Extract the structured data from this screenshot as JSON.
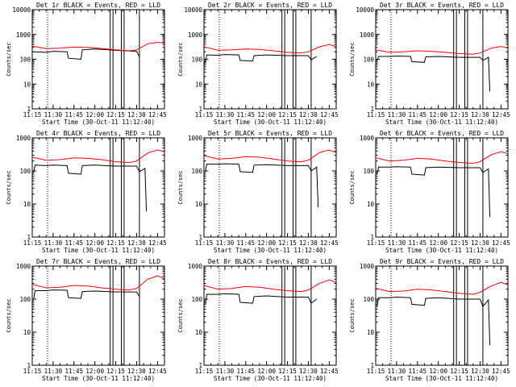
{
  "chart_data": [
    {
      "type": "line",
      "title": "Det 1r BLACK = Events, RED = LLD",
      "xlabel": "Start Time (30-Oct-11 11:12:40)",
      "ylabel": "Counts/sec",
      "y_scale": "log",
      "ylim": [
        1,
        10000
      ],
      "xlim": [
        "11:15",
        "12:50"
      ],
      "x_ticks": [
        "11:15",
        "11:30",
        "11:45",
        "12:00",
        "12:15",
        "12:30",
        "12:45"
      ],
      "y_ticks": [
        "1",
        "10",
        "100",
        "1000",
        "10000"
      ],
      "series": [
        {
          "color": "#000000",
          "x": [
            "11:16",
            "11:25",
            "11:30",
            "11:40",
            "11:41",
            "11:50",
            "11:51",
            "12:00",
            "12:15",
            "12:30",
            "12:32"
          ],
          "y": [
            200,
            190,
            210,
            200,
            110,
            100,
            240,
            260,
            230,
            210,
            125
          ]
        },
        {
          "color": "#ff0000",
          "x": [
            "11:15",
            "11:25",
            "11:35",
            "11:45",
            "11:55",
            "12:05",
            "12:15",
            "12:25",
            "12:30",
            "12:38",
            "12:45",
            "12:50"
          ],
          "y": [
            340,
            270,
            280,
            310,
            300,
            270,
            240,
            220,
            240,
            420,
            480,
            460
          ]
        }
      ],
      "markers": [
        "11:26",
        "12:11",
        "12:13",
        "12:19",
        "12:21",
        "12:32"
      ]
    },
    {
      "type": "line",
      "title": "Det 2r BLACK = Events, RED = LLD",
      "xlabel": "Start Time (30-Oct-11 11:12:40)",
      "ylabel": "Counts/sec",
      "y_scale": "log",
      "ylim": [
        1,
        10000
      ],
      "xlim": [
        "11:15",
        "12:50"
      ],
      "x_ticks": [
        "11:15",
        "11:30",
        "11:45",
        "12:00",
        "12:15",
        "12:30",
        "12:45"
      ],
      "y_ticks": [
        "1",
        "10",
        "100",
        "1000",
        "10000"
      ],
      "series": [
        {
          "color": "#000000",
          "x": [
            "11:16",
            "11:17",
            "11:25",
            "11:30",
            "11:40",
            "11:41",
            "11:50",
            "11:51",
            "12:00",
            "12:15",
            "12:30",
            "12:32",
            "12:36"
          ],
          "y": [
            70,
            150,
            145,
            155,
            150,
            90,
            85,
            140,
            150,
            140,
            140,
            95,
            130
          ]
        },
        {
          "color": "#ff0000",
          "x": [
            "11:15",
            "11:25",
            "11:35",
            "11:45",
            "11:55",
            "12:05",
            "12:15",
            "12:25",
            "12:30",
            "12:38",
            "12:45",
            "12:50"
          ],
          "y": [
            320,
            230,
            240,
            260,
            250,
            220,
            190,
            180,
            200,
            320,
            390,
            330
          ]
        }
      ],
      "markers": [
        "11:26",
        "12:11",
        "12:13",
        "12:19",
        "12:21",
        "12:32"
      ]
    },
    {
      "type": "line",
      "title": "Det 3r BLACK = Events, RED = LLD",
      "xlabel": "Start Time (30-Oct-11 11:12:40)",
      "ylabel": "Counts/sec",
      "y_scale": "log",
      "ylim": [
        1,
        10000
      ],
      "xlim": [
        "11:15",
        "12:50"
      ],
      "x_ticks": [
        "11:15",
        "11:30",
        "11:45",
        "12:00",
        "12:15",
        "12:30",
        "12:45"
      ],
      "y_ticks": [
        "1",
        "10",
        "100",
        "1000",
        "10000"
      ],
      "series": [
        {
          "color": "#000000",
          "x": [
            "11:16",
            "11:17",
            "11:25",
            "11:30",
            "11:40",
            "11:41",
            "11:50",
            "11:51",
            "12:00",
            "12:15",
            "12:30",
            "12:32",
            "12:36",
            "12:37"
          ],
          "y": [
            90,
            130,
            130,
            135,
            130,
            80,
            75,
            125,
            130,
            120,
            120,
            90,
            120,
            5
          ]
        },
        {
          "color": "#ff0000",
          "x": [
            "11:15",
            "11:25",
            "11:35",
            "11:45",
            "11:55",
            "12:05",
            "12:15",
            "12:25",
            "12:30",
            "12:38",
            "12:45",
            "12:50"
          ],
          "y": [
            240,
            190,
            200,
            220,
            210,
            190,
            170,
            160,
            180,
            280,
            330,
            280
          ]
        }
      ],
      "markers": [
        "11:26",
        "12:11",
        "12:13",
        "12:19",
        "12:21",
        "12:32"
      ]
    },
    {
      "type": "line",
      "title": "Det 4r BLACK = Events, RED = LLD",
      "xlabel": "Start Time (30-Oct-11 11:12:40)",
      "ylabel": "Counts/sec",
      "y_scale": "log",
      "ylim": [
        1,
        1000
      ],
      "xlim": [
        "11:15",
        "12:50"
      ],
      "x_ticks": [
        "11:15",
        "11:30",
        "11:45",
        "12:00",
        "12:15",
        "12:30",
        "12:45"
      ],
      "y_ticks": [
        "1",
        "10",
        "100",
        "1000"
      ],
      "series": [
        {
          "color": "#000000",
          "x": [
            "11:16",
            "11:17",
            "11:25",
            "11:30",
            "11:40",
            "11:41",
            "11:50",
            "11:51",
            "12:00",
            "12:15",
            "12:30",
            "12:32",
            "12:36",
            "12:37"
          ],
          "y": [
            90,
            150,
            145,
            150,
            145,
            85,
            80,
            145,
            150,
            140,
            140,
            95,
            120,
            6
          ]
        },
        {
          "color": "#ff0000",
          "x": [
            "11:15",
            "11:25",
            "11:35",
            "11:45",
            "11:55",
            "12:05",
            "12:15",
            "12:25",
            "12:30",
            "12:38",
            "12:45",
            "12:50"
          ],
          "y": [
            260,
            210,
            220,
            250,
            240,
            220,
            190,
            180,
            200,
            350,
            430,
            380
          ]
        }
      ],
      "markers": [
        "11:26",
        "12:11",
        "12:13",
        "12:19",
        "12:21",
        "12:32"
      ]
    },
    {
      "type": "line",
      "title": "Det 5r BLACK = Events, RED = LLD",
      "xlabel": "Start Time (30-Oct-11 11:12:40)",
      "ylabel": "Counts/sec",
      "y_scale": "log",
      "ylim": [
        1,
        1000
      ],
      "xlim": [
        "11:15",
        "12:50"
      ],
      "x_ticks": [
        "11:15",
        "11:30",
        "11:45",
        "12:00",
        "12:15",
        "12:30",
        "12:45"
      ],
      "y_ticks": [
        "1",
        "10",
        "100",
        "1000"
      ],
      "series": [
        {
          "color": "#000000",
          "x": [
            "11:16",
            "11:17",
            "11:25",
            "11:30",
            "11:40",
            "11:41",
            "11:50",
            "11:51",
            "12:00",
            "12:15",
            "12:30",
            "12:32",
            "12:36",
            "12:37"
          ],
          "y": [
            100,
            160,
            160,
            165,
            160,
            95,
            90,
            150,
            155,
            145,
            145,
            100,
            130,
            8
          ]
        },
        {
          "color": "#ff0000",
          "x": [
            "11:15",
            "11:25",
            "11:35",
            "11:45",
            "11:55",
            "12:05",
            "12:15",
            "12:25",
            "12:30",
            "12:38",
            "12:45",
            "12:50"
          ],
          "y": [
            290,
            230,
            240,
            270,
            260,
            230,
            200,
            190,
            210,
            360,
            430,
            360
          ]
        }
      ],
      "markers": [
        "11:26",
        "12:11",
        "12:13",
        "12:19",
        "12:21",
        "12:32"
      ]
    },
    {
      "type": "line",
      "title": "Det 6r BLACK = Events, RED = LLD",
      "xlabel": "Start Time (30-Oct-11 11:12:40)",
      "ylabel": "Counts/sec",
      "y_scale": "log",
      "ylim": [
        1,
        1000
      ],
      "xlim": [
        "11:15",
        "12:50"
      ],
      "x_ticks": [
        "11:15",
        "11:30",
        "11:45",
        "12:00",
        "12:15",
        "12:30",
        "12:45"
      ],
      "y_ticks": [
        "1",
        "10",
        "100",
        "1000"
      ],
      "series": [
        {
          "color": "#000000",
          "x": [
            "11:16",
            "11:17",
            "11:25",
            "11:30",
            "11:40",
            "11:41",
            "11:50",
            "11:51",
            "12:00",
            "12:15",
            "12:30",
            "12:32",
            "12:36",
            "12:37"
          ],
          "y": [
            80,
            130,
            130,
            135,
            130,
            80,
            75,
            125,
            130,
            125,
            125,
            90,
            115,
            4
          ]
        },
        {
          "color": "#ff0000",
          "x": [
            "11:15",
            "11:25",
            "11:35",
            "11:45",
            "11:55",
            "12:05",
            "12:15",
            "12:25",
            "12:30",
            "12:38",
            "12:45",
            "12:50"
          ],
          "y": [
            250,
            200,
            210,
            240,
            230,
            200,
            180,
            170,
            190,
            310,
            380,
            330
          ]
        }
      ],
      "markers": [
        "11:26",
        "12:11",
        "12:13",
        "12:19",
        "12:21",
        "12:32"
      ]
    },
    {
      "type": "line",
      "title": "Det 7r BLACK = Events, RED = LLD",
      "xlabel": "Start Time (30-Oct-11 11:12:40)",
      "ylabel": "Counts/sec",
      "y_scale": "log",
      "ylim": [
        1,
        1000
      ],
      "xlim": [
        "11:15",
        "12:50"
      ],
      "x_ticks": [
        "11:15",
        "11:30",
        "11:45",
        "12:00",
        "12:15",
        "12:30",
        "12:45"
      ],
      "y_ticks": [
        "1",
        "10",
        "100",
        "1000"
      ],
      "series": [
        {
          "color": "#000000",
          "x": [
            "11:16",
            "11:17",
            "11:25",
            "11:30",
            "11:40",
            "11:41",
            "11:50",
            "11:51",
            "12:00",
            "12:15",
            "12:30",
            "12:32"
          ],
          "y": [
            100,
            180,
            180,
            190,
            185,
            110,
            105,
            170,
            175,
            165,
            165,
            120
          ]
        },
        {
          "color": "#ff0000",
          "x": [
            "11:15",
            "11:25",
            "11:35",
            "11:45",
            "11:55",
            "12:05",
            "12:15",
            "12:25",
            "12:30",
            "12:38",
            "12:45",
            "12:50"
          ],
          "y": [
            280,
            220,
            230,
            260,
            250,
            220,
            200,
            190,
            210,
            400,
            500,
            420
          ]
        }
      ],
      "markers": [
        "11:26",
        "12:11",
        "12:13",
        "12:19",
        "12:21",
        "12:32"
      ]
    },
    {
      "type": "line",
      "title": "Det 8r BLACK = Events, RED = LLD",
      "xlabel": "Start Time (30-Oct-11 11:12:40)",
      "ylabel": "Counts/sec",
      "y_scale": "log",
      "ylim": [
        1,
        1000
      ],
      "xlim": [
        "11:15",
        "12:50"
      ],
      "x_ticks": [
        "11:15",
        "11:30",
        "11:45",
        "12:00",
        "12:15",
        "12:30",
        "12:45"
      ],
      "y_ticks": [
        "1",
        "10",
        "100",
        "1000"
      ],
      "series": [
        {
          "color": "#000000",
          "x": [
            "11:16",
            "11:17",
            "11:25",
            "11:30",
            "11:40",
            "11:41",
            "11:50",
            "11:51",
            "12:00",
            "12:15",
            "12:30",
            "12:32",
            "12:36"
          ],
          "y": [
            70,
            140,
            140,
            145,
            140,
            80,
            75,
            120,
            125,
            115,
            115,
            75,
            100
          ]
        },
        {
          "color": "#ff0000",
          "x": [
            "11:15",
            "11:25",
            "11:35",
            "11:45",
            "11:55",
            "12:05",
            "12:15",
            "12:25",
            "12:30",
            "12:38",
            "12:45",
            "12:50"
          ],
          "y": [
            260,
            200,
            210,
            240,
            230,
            200,
            180,
            170,
            190,
            300,
            380,
            320
          ]
        }
      ],
      "markers": [
        "11:26",
        "12:11",
        "12:13",
        "12:19",
        "12:21",
        "12:32"
      ]
    },
    {
      "type": "line",
      "title": "Det 9r BLACK = Events, RED = LLD",
      "xlabel": "Start Time (30-Oct-11 11:12:40)",
      "ylabel": "Counts/sec",
      "y_scale": "log",
      "ylim": [
        1,
        1000
      ],
      "xlim": [
        "11:15",
        "12:50"
      ],
      "x_ticks": [
        "11:15",
        "11:30",
        "11:45",
        "12:00",
        "12:15",
        "12:30",
        "12:45"
      ],
      "y_ticks": [
        "1",
        "10",
        "100",
        "1000"
      ],
      "series": [
        {
          "color": "#000000",
          "x": [
            "11:16",
            "11:17",
            "11:25",
            "11:30",
            "11:40",
            "11:41",
            "11:50",
            "11:51",
            "12:00",
            "12:15",
            "12:30",
            "12:32",
            "12:36",
            "12:37"
          ],
          "y": [
            60,
            110,
            110,
            115,
            110,
            70,
            65,
            105,
            110,
            100,
            100,
            60,
            95,
            4
          ]
        },
        {
          "color": "#ff0000",
          "x": [
            "11:15",
            "11:25",
            "11:35",
            "11:45",
            "11:55",
            "12:05",
            "12:15",
            "12:25",
            "12:30",
            "12:38",
            "12:45",
            "12:50"
          ],
          "y": [
            210,
            170,
            175,
            200,
            190,
            170,
            150,
            140,
            160,
            250,
            320,
            270
          ]
        }
      ],
      "markers": [
        "11:26",
        "12:11",
        "12:13",
        "12:19",
        "12:21",
        "12:32"
      ]
    }
  ]
}
